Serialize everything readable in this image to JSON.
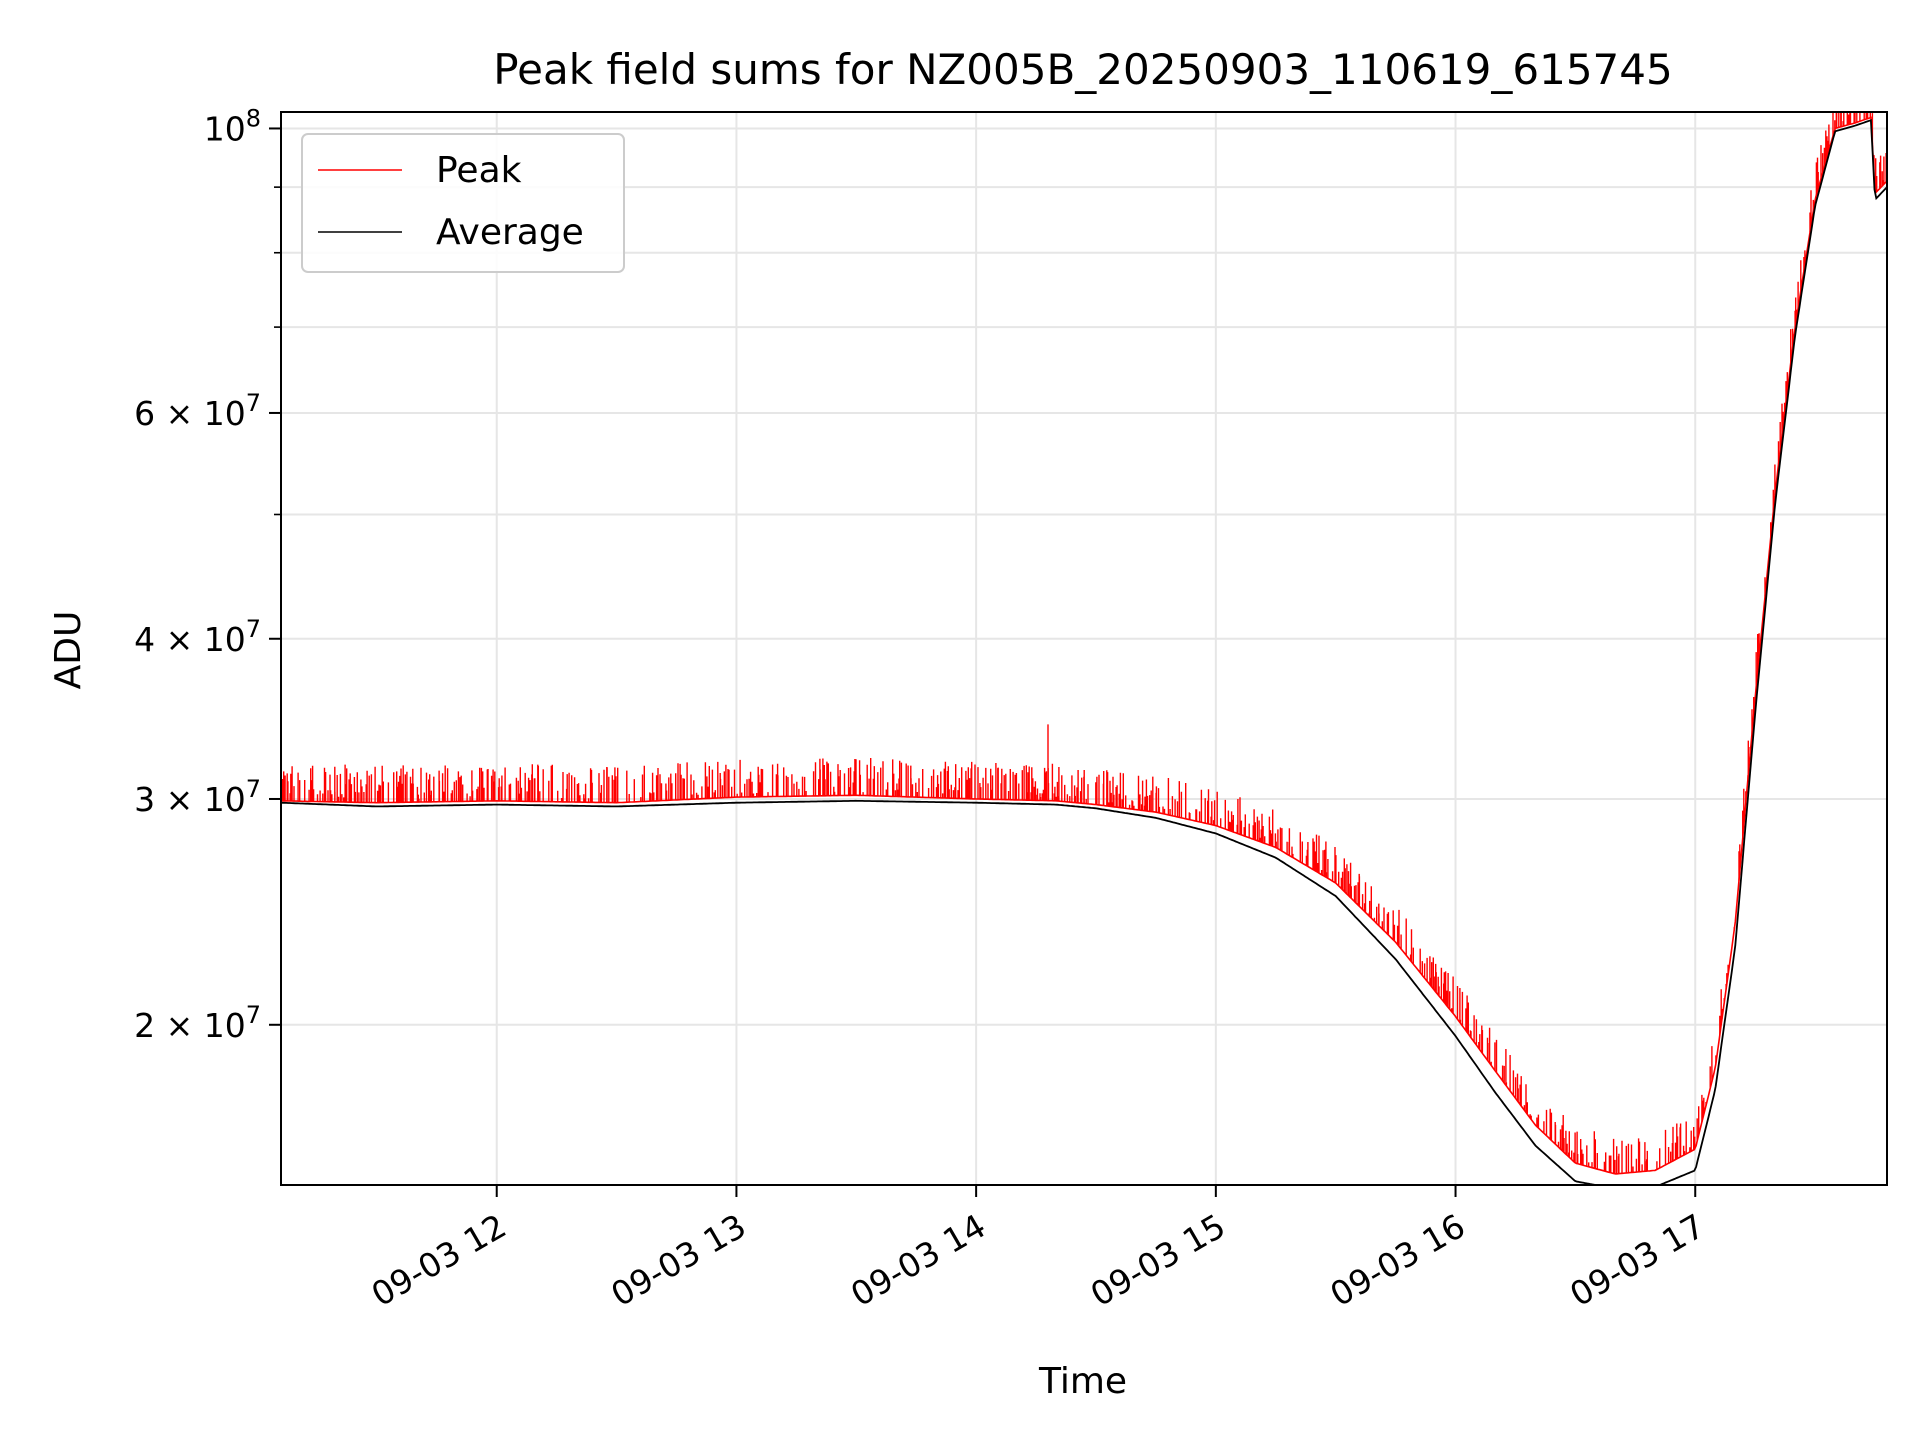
{
  "chart_data": {
    "type": "line",
    "title": "Peak field sums for NZ005B_20250903_110619_615745",
    "xlabel": "Time",
    "ylabel": "ADU",
    "yscale": "log",
    "ylim": [
      15000000,
      103000000
    ],
    "xlim": [
      "2025-09-03 11:06",
      "2025-09-03 17:48"
    ],
    "grid": true,
    "legend_position": "top-left",
    "x_ticks": [
      {
        "time": "2025-09-03 12:00",
        "label": "09-03 12"
      },
      {
        "time": "2025-09-03 13:00",
        "label": "09-03 13"
      },
      {
        "time": "2025-09-03 14:00",
        "label": "09-03 14"
      },
      {
        "time": "2025-09-03 15:00",
        "label": "09-03 15"
      },
      {
        "time": "2025-09-03 16:00",
        "label": "09-03 16"
      },
      {
        "time": "2025-09-03 17:00",
        "label": "09-03 17"
      }
    ],
    "y_ticks": [
      {
        "value": 20000000,
        "label_mantissa": "2",
        "label_base": "10",
        "label_exp": "7"
      },
      {
        "value": 30000000,
        "label_mantissa": "3",
        "label_base": "10",
        "label_exp": "7"
      },
      {
        "value": 40000000,
        "label_mantissa": "4",
        "label_base": "10",
        "label_exp": "7"
      },
      {
        "value": 60000000,
        "label_mantissa": "6",
        "label_base": "10",
        "label_exp": "7"
      },
      {
        "value": 100000000,
        "label_mantissa": "",
        "label_base": "10",
        "label_exp": "8"
      }
    ],
    "y_minor_ticks": [
      50000000,
      70000000,
      80000000,
      90000000
    ],
    "series": [
      {
        "name": "Peak",
        "color": "#ff0000",
        "x": [
          "2025-09-03 11:06",
          "2025-09-03 11:30",
          "2025-09-03 12:00",
          "2025-09-03 12:30",
          "2025-09-03 13:00",
          "2025-09-03 13:30",
          "2025-09-03 14:00",
          "2025-09-03 14:20",
          "2025-09-03 14:30",
          "2025-09-03 14:45",
          "2025-09-03 15:00",
          "2025-09-03 15:15",
          "2025-09-03 15:30",
          "2025-09-03 15:45",
          "2025-09-03 16:00",
          "2025-09-03 16:10",
          "2025-09-03 16:20",
          "2025-09-03 16:30",
          "2025-09-03 16:40",
          "2025-09-03 16:50",
          "2025-09-03 17:00",
          "2025-09-03 17:05",
          "2025-09-03 17:10",
          "2025-09-03 17:15",
          "2025-09-03 17:20",
          "2025-09-03 17:25",
          "2025-09-03 17:30",
          "2025-09-03 17:35",
          "2025-09-03 17:40",
          "2025-09-03 17:44",
          "2025-09-03 17:45",
          "2025-09-03 17:48"
        ],
        "y": [
          29900000,
          29800000,
          29900000,
          29800000,
          30100000,
          30200000,
          30000000,
          29900000,
          29700000,
          29300000,
          28600000,
          27500000,
          25800000,
          23200000,
          20300000,
          18400000,
          16700000,
          15600000,
          15300000,
          15400000,
          16000000,
          18500000,
          24000000,
          36000000,
          52000000,
          70000000,
          88000000,
          100000000,
          101000000,
          102000000,
          89000000,
          91000000
        ],
        "spikes": {
          "count": 1400,
          "band_low": 0.006,
          "band_high": 0.07,
          "events": [
            {
              "time": "2025-09-03 14:18",
              "y": 34300000
            }
          ]
        }
      },
      {
        "name": "Average",
        "color": "#000000",
        "x": [
          "2025-09-03 11:06",
          "2025-09-03 11:30",
          "2025-09-03 12:00",
          "2025-09-03 12:30",
          "2025-09-03 13:00",
          "2025-09-03 13:30",
          "2025-09-03 14:00",
          "2025-09-03 14:20",
          "2025-09-03 14:30",
          "2025-09-03 14:45",
          "2025-09-03 15:00",
          "2025-09-03 15:15",
          "2025-09-03 15:30",
          "2025-09-03 15:45",
          "2025-09-03 16:00",
          "2025-09-03 16:10",
          "2025-09-03 16:20",
          "2025-09-03 16:30",
          "2025-09-03 16:40",
          "2025-09-03 16:50",
          "2025-09-03 17:00",
          "2025-09-03 17:05",
          "2025-09-03 17:10",
          "2025-09-03 17:15",
          "2025-09-03 17:20",
          "2025-09-03 17:25",
          "2025-09-03 17:30",
          "2025-09-03 17:35",
          "2025-09-03 17:40",
          "2025-09-03 17:44",
          "2025-09-03 17:45",
          "2025-09-03 17:48"
        ],
        "y": [
          29800000,
          29600000,
          29700000,
          29600000,
          29800000,
          29900000,
          29800000,
          29700000,
          29500000,
          29000000,
          28200000,
          27000000,
          25200000,
          22500000,
          19600000,
          17700000,
          16100000,
          15100000,
          14900000,
          14950000,
          15400000,
          17800000,
          23000000,
          35000000,
          51000000,
          69000000,
          87000000,
          99500000,
          100500000,
          101500000,
          88000000,
          90000000
        ]
      }
    ]
  }
}
